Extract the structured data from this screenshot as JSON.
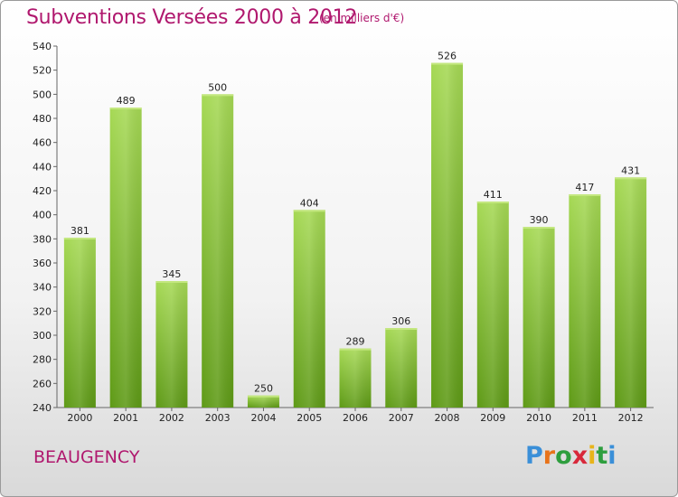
{
  "header": {
    "title": "Subventions Versées 2000 à 2012",
    "subtitle": "(en milliers d'€)"
  },
  "footer": {
    "city": "BEAUGENCY",
    "logo_letters": [
      "P",
      "r",
      "o",
      "x",
      "i",
      "t",
      "i"
    ],
    "logo_colors": [
      "#3a8fd8",
      "#e8731a",
      "#2e9e3e",
      "#d8283a",
      "#e8b41a",
      "#2e9e3e",
      "#3a8fd8"
    ]
  },
  "colors": {
    "title": "#b0186e",
    "bar_light": "#9ed24e",
    "bar_dark": "#5e9a16",
    "axis": "#555555"
  },
  "chart_data": {
    "type": "bar",
    "title": "Subventions Versées 2000 à 2012",
    "subtitle": "(en milliers d'€)",
    "categories": [
      "2000",
      "2001",
      "2002",
      "2003",
      "2004",
      "2005",
      "2006",
      "2007",
      "2008",
      "2009",
      "2010",
      "2011",
      "2012"
    ],
    "values": [
      381,
      489,
      345,
      500,
      250,
      404,
      289,
      306,
      526,
      411,
      390,
      417,
      431
    ],
    "ylim": [
      240,
      540
    ],
    "yticks": [
      240,
      260,
      280,
      300,
      320,
      340,
      360,
      380,
      400,
      420,
      440,
      460,
      480,
      500,
      520,
      540
    ],
    "grid": false,
    "legend": "none"
  }
}
